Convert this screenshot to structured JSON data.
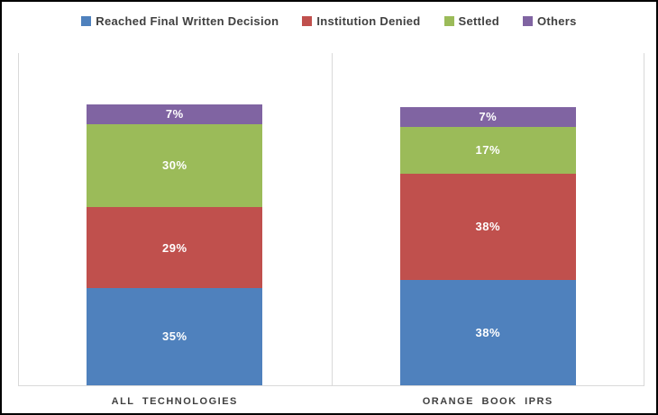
{
  "chart_data": {
    "type": "bar",
    "stacked": true,
    "orientation": "vertical",
    "title": "",
    "xlabel": "",
    "ylabel": "",
    "legend_position": "top",
    "grid": "vertical-category-boundaries",
    "label_format": "percent",
    "categories": [
      "ALL TECHNOLOGIES",
      "ORANGE BOOK IPRS"
    ],
    "series": [
      {
        "name": "Reached Final Written Decision",
        "color": "#4F81BD",
        "values": [
          35,
          38
        ]
      },
      {
        "name": "Institution Denied",
        "color": "#C0504D",
        "values": [
          29,
          38
        ]
      },
      {
        "name": "Settled",
        "color": "#9BBB59",
        "values": [
          30,
          17
        ]
      },
      {
        "name": "Others",
        "color": "#8064A2",
        "values": [
          7,
          7
        ]
      }
    ],
    "value_labels": {
      "ALL TECHNOLOGIES": [
        "35%",
        "29%",
        "30%",
        "7%"
      ],
      "ORANGE BOOK IPRS": [
        "38%",
        "38%",
        "17%",
        "7%"
      ]
    }
  },
  "colors": {
    "gridline": "#d9d9d9",
    "axis_line": "#d9d9d9",
    "category_text": "#404040",
    "legend_text": "#404040",
    "bar_value_text": "#ffffff",
    "frame_border": "#000000",
    "background": "#ffffff"
  }
}
